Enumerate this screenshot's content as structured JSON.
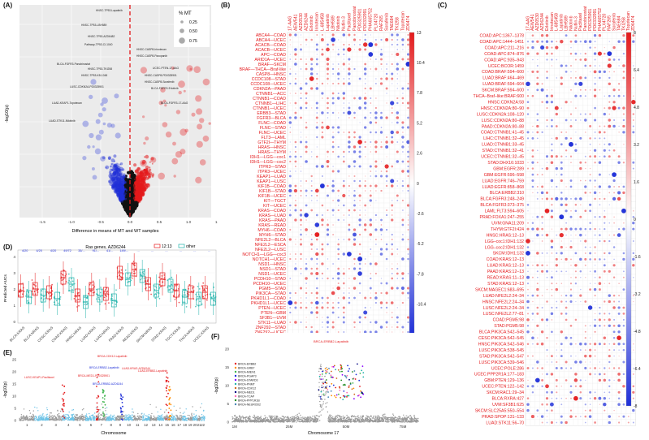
{
  "panels": {
    "A": {
      "label": "(A)",
      "xlabel": "Difference in means of MT and WT samples",
      "ylabel": "-log10(p)",
      "xticks": [
        "-1.5",
        "-1.0",
        "-0.5",
        "0.0",
        "0.5",
        "1.0",
        "1.5"
      ],
      "legend_title": "% MT",
      "legend_items": [
        "0.25",
        "0.50",
        "0.75"
      ],
      "annotations": [
        "HNSC-TP53-Lapatinib",
        "HNSC-TP53-LBH589",
        "HNSC-TP53-AZD6482",
        "Pathway-TP53-CI-1040",
        "HNSC-CASP8-Irinotecan",
        "HNSC-CASP8-Pazopanib",
        "BLCA-FGFR3-Panobinostat",
        "UCEC-PTEN-17-AAG",
        "HNSC-TP53-TKI258",
        "HNSC-CASP8-PD0325901",
        "HNSC-TP53-KB-1045",
        "HNSC-CASP8-Sorafenib",
        "LUSC-CDKN2A-PD0325901",
        "BLCA-FGFR3-Erlotinib",
        "LUAD-KEAP1-Topotecan",
        "BLCA-FGFR3-17-AAG",
        "LUAD-STK11-Nilotinib"
      ]
    },
    "B": {
      "label": "(B)",
      "columns": [
        "17-AAG",
        "AEW541",
        "AZD0530",
        "AZD6244",
        "Erlotinib",
        "Irinotecan",
        "L-685458",
        "Lapatinib",
        "LBH589",
        "Nilotinib",
        "Nutlin-3",
        "Paclitaxel",
        "Panobinostat",
        "PD0325901",
        "PD0332991",
        "PHA665752",
        "PLX4720",
        "RAF265",
        "Sorafenib",
        "TAE684",
        "TKI258",
        "Topotecan",
        "ZD6474"
      ],
      "rows": [
        "ABCA4—COAD",
        "ABCA4—UCEC",
        "ACACB—COAD",
        "ACACB—UCEC",
        "APC—COAD",
        "ARID1A—UCEC",
        "BRAF—SKCM",
        "BRAF—THCA—Braf-like",
        "CASP8—HNSC",
        "CCDC108—STAD",
        "CCDC108—UCEC",
        "CDKN2A—PAAD",
        "CTNNB1—ACC",
        "CTNNB1—COAD",
        "CTNNB1—LIHC",
        "CTNNB1—UCEC",
        "ERBB3—STAD",
        "FGFR3—BLCA",
        "FLNC—COAD",
        "FLNC—STAD",
        "FLNC—UCEC",
        "FLT3—LAML",
        "GTF2I—THYM",
        "HRAS—HNSC",
        "HRAS—THYM",
        "IDH1—LGG—coc1",
        "IDH1—LGG—coc2",
        "ITPR3—STAD",
        "ITPR3—UCEC",
        "KEAP1—LUAD",
        "KEAP1—LUSC",
        "KIF1B—COAD",
        "KIF1B—STAD",
        "KIF1B—UCEC",
        "KIT—TGCT",
        "KIT—UCEC",
        "KRAS—COAD",
        "KRAS—LUAD",
        "KRAS—PAAD",
        "KRAS—READ",
        "MYH6—COAD",
        "MYH6—STAD",
        "NFE2L2—BLCA",
        "NFE2L2—ESCA",
        "NFE2L2—LUSC",
        "NOTCH1—LGG—coc3",
        "NOTCH1—UCEC",
        "NSD1—HNSC",
        "NSD1—STAD",
        "NSD1—UCEC",
        "PCDH10—STAD",
        "PCDH10—UCEC",
        "PGM5—STAD",
        "PIK3CA—STAD",
        "PKHD1L1—COAD",
        "PKHD1L1—UCEC",
        "PTEN—UCEC",
        "PTEN—GBM",
        "SF3B1—UVM",
        "STK11—LUAD",
        "ZNF292—STAD",
        "ZNF292—UCEC"
      ],
      "colorbar": [
        "13",
        "10.4",
        "7.8",
        "5.2",
        "2.6",
        "0",
        "-2.6",
        "-5.2",
        "-7.8",
        "-10.4",
        "-13"
      ]
    },
    "C": {
      "label": "(C)",
      "columns": [
        "17-AAG",
        "AEW541",
        "AZD0530",
        "AZD6244",
        "Erlotinib",
        "Irinotecan",
        "L-685458",
        "Lapatinib",
        "LBH589",
        "Nilotinib",
        "Nutlin-3",
        "Paclitaxel",
        "Panobinostat",
        "PD0325901",
        "PD0332991",
        "PHA665752",
        "PLX4720",
        "RAF265",
        "Sorafenib",
        "TAE684",
        "TKI258",
        "Topotecan",
        "ZD6474"
      ],
      "rows": [
        "COAD:APC:1367–1378",
        "COAD:APC:1444–1451",
        "COAD:APC:211–216",
        "COAD:APC:874–876",
        "COAD:APC:935–943",
        "UCEC:BCOR:1459",
        "COAD:BRAF:594–600",
        "LUAD:BRAF:464–469",
        "LUAD:BRAF:594–604",
        "SKCM:BRAF:594–600",
        "THCA–Braf–like:BRAF:600",
        "HNSC:CDKN2A:58",
        "HNSC:CDKN2A:80–90",
        "LUSC:CDKN2A:108–120",
        "LUSC:CDKN2A:80–88",
        "PAAD:CDKN2A:80–88",
        "COAD:CTNNB1:41–45",
        "LIHC:CTNNB1:32–45",
        "LUAD:CTNNB1:33–45",
        "STAD:CTNNB1:32–41",
        "UCEC:CTNNB1:32–45",
        "STAD:DHX16:1033",
        "GBM:EGFR:289",
        "GBM:EGFR:596–598",
        "LUAD:EGFR:746–759",
        "LUAD:EGFR:858–868",
        "BLCA:ERBB2:310",
        "BLCA:FGFR3:248–249",
        "BLCA:FGFR3:373–375",
        "LAML:FLT3:594–605",
        "PRAD:FOXA1:247–255",
        "UVM:GNA11:209",
        "THYM:GTF2I:424",
        "HNSC:HRAS:12–13",
        "LGG–coc1:IDH1:132",
        "LGG–coc2:IDH1:132",
        "SKCM:IDH1:132",
        "COAD:KRAS:12–13",
        "LUAD:KRAS:12–13",
        "PAAD:KRAS:12–13",
        "READ:KRAS:11–13",
        "STAD:KRAS:12–13",
        "SKCM:MAGEC1:683–695",
        "LUAD:NFE2L2:24–34",
        "HNSC:NFE2L2:24–34",
        "LUSC:NFE2L2:24–34",
        "LUSC:NFE2L2:77–81",
        "COAD:PGM5:98",
        "STAD:PGM5:98",
        "BLCA:PIK3CA:542–545",
        "CESC:PIK3CA:542–545",
        "HNSC:PIK3CA:542–546",
        "LUSC:PIK3CA:538–545",
        "STAD:PIK3CA:542–547",
        "LUSC:PIK3CA:539–546",
        "UCEC:POLE:286",
        "UCEC:PPP2R1A:177–183",
        "GBM:PTEN:129–136",
        "UCEC:PTEN:122–142",
        "SKCM:RAC1:29–34",
        "BLCA:RXRA:427",
        "UVM:SF3B1:625",
        "SKCM:SLC25A5:550–554",
        "PRAD:SPOP:131–133",
        "LUAD:STK11:56–70"
      ],
      "colorbar": [
        "8",
        "6.4",
        "4.8",
        "3.2",
        "1.6",
        "0",
        "-1.6",
        "-3.2",
        "-4.8",
        "-6.4",
        "-8"
      ]
    },
    "D": {
      "label": "(D)",
      "title": "Ras genes, AZD6244",
      "legend": [
        "12:13",
        "other"
      ],
      "ylabel": "Predicted AUCs",
      "yticks": [
        "0",
        "1",
        "2",
        "3",
        "4"
      ],
      "categories": [
        "BLCA:KRAS",
        "BLCA:NRAS",
        "CESC:KRAS",
        "COAD:KRAS",
        "HNSC:HRAS",
        "LUAD:KRAS",
        "LUAD:NRAS",
        "PAAD:KRAS",
        "READ:KRAS",
        "SKCM:NRAS",
        "STAD:KRAS",
        "TGCT:KRAS",
        "THCA:NRAS",
        "UCEC:KRAS"
      ],
      "counts_top": [
        "4/20",
        "4/20",
        "4/20",
        "49/72",
        "33/...",
        "91/...",
        "41/...",
        "149/...",
        "...",
        "...",
        "...",
        "...",
        "...",
        "..."
      ]
    },
    "E": {
      "label": "(E)",
      "xlabel": "Chromosome",
      "ylabel": "-log10(p)",
      "yticks": [
        "0",
        "5",
        "10",
        "15",
        "20",
        "25"
      ],
      "chromosomes": [
        "1",
        "2",
        "3",
        "4",
        "5",
        "6",
        "7",
        "8",
        "9",
        "10",
        "11",
        "12",
        "13",
        "14",
        "15",
        "16",
        "17",
        "18",
        "19",
        "20",
        "21",
        "22"
      ],
      "annotations": [
        "LUSC-KEAP1-Paclitaxel",
        "BRCA-CDK12-Lapatinib",
        "BRCA-ERBB2-Lapatinib",
        "LUAD-KRAS-AZD6244",
        "BRCA-MED1-PD0325901",
        "BRCA-ERBB2-AZD6244",
        "LUAD-ERBB2-Lapatinib"
      ]
    },
    "F": {
      "label": "(F)",
      "xlabel": "Chromosome 17",
      "ylabel": "-log10(p)",
      "xticks": [
        "1M",
        "25M",
        "50M",
        "75M"
      ],
      "yticks": [
        "0",
        "5",
        "10",
        "15",
        "20"
      ],
      "legend_items": [
        "BRCA-ERBB2",
        "BRCA-GRB7",
        "BRCA-MIEN1",
        "BRCA-PGAP3",
        "BRCA-STARD3",
        "BRCA-PNMT",
        "BRCA-CDK12",
        "BRCA-MED1",
        "BRCA-TCAP",
        "BRCA-PPP1R1B",
        "BRCA-NEUROD2"
      ],
      "top_annotation": "BRCA-ERBB2-Lapatinib"
    }
  },
  "colors": {
    "red": "#e41a1c",
    "blue": "#1f2fd8",
    "teal": "#20b2aa",
    "salmon": "#f08080",
    "grey": "#999999"
  }
}
